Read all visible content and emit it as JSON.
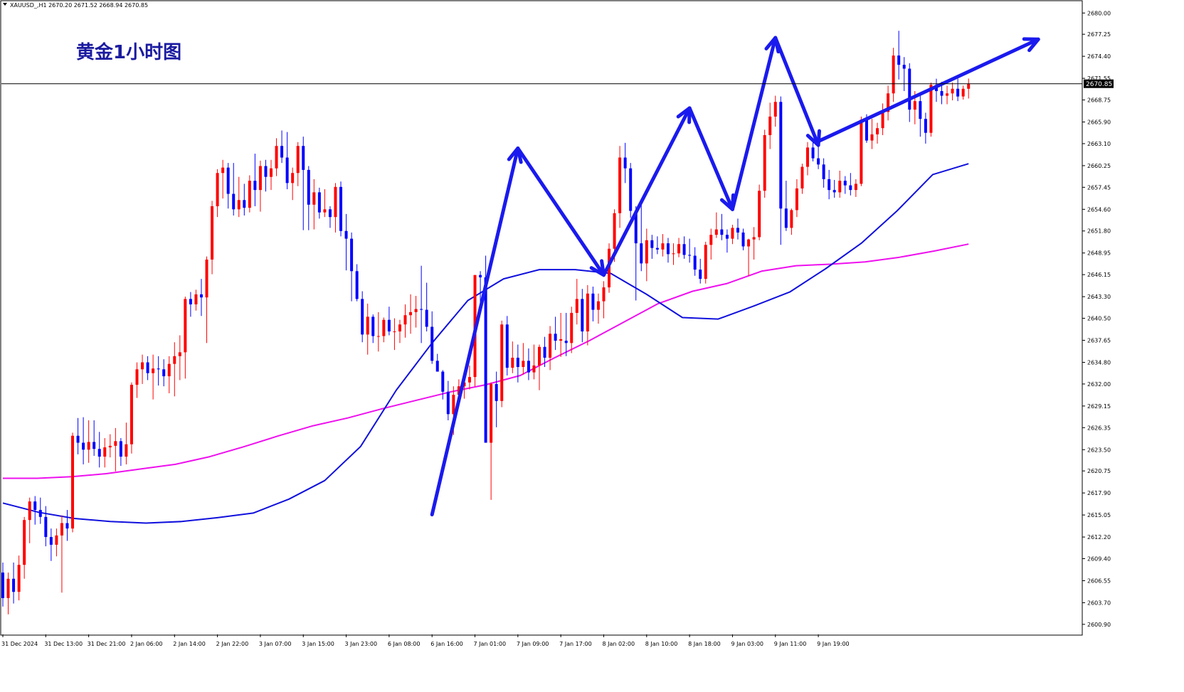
{
  "header": {
    "symbol_line": "XAUUSD_,H1  2670.20 2671.52 2668.94 2670.85"
  },
  "chart_data": {
    "type": "candlestick",
    "title": "黄金1小时图",
    "symbol": "XAUUSD_",
    "timeframe": "H1",
    "current_price_label": "2670.85",
    "current_price": 2670.85,
    "ylim": [
      2599.6,
      2681.5
    ],
    "y_ticks": [
      "2680.00",
      "2677.25",
      "2674.40",
      "2671.55",
      "2668.75",
      "2665.90",
      "2663.10",
      "2660.25",
      "2657.45",
      "2654.60",
      "2651.80",
      "2648.95",
      "2646.15",
      "2643.30",
      "2640.50",
      "2637.65",
      "2634.80",
      "2632.00",
      "2629.15",
      "2626.35",
      "2623.50",
      "2620.75",
      "2617.90",
      "2615.05",
      "2612.20",
      "2609.40",
      "2606.55",
      "2603.70",
      "2600.90"
    ],
    "x_labels": [
      "31 Dec 2024",
      "31 Dec 13:00",
      "31 Dec 21:00",
      "2 Jan 06:00",
      "2 Jan 14:00",
      "2 Jan 22:00",
      "3 Jan 07:00",
      "3 Jan 15:00",
      "3 Jan 23:00",
      "6 Jan 08:00",
      "6 Jan 16:00",
      "7 Jan 01:00",
      "7 Jan 09:00",
      "7 Jan 17:00",
      "8 Jan 02:00",
      "8 Jan 10:00",
      "8 Jan 18:00",
      "9 Jan 03:00",
      "9 Jan 11:00",
      "9 Jan 19:00"
    ],
    "colors": {
      "bull": "#ff0000",
      "bear": "#0000ff",
      "ma_fast": "#1010dd",
      "ma_slow": "#ee10ee",
      "arrow": "#1a1aee",
      "grid": "none"
    },
    "candles": [
      [
        2607.6,
        2608.9,
        2603.2,
        2604.3
      ],
      [
        2604.3,
        2607.6,
        2602.2,
        2606.8
      ],
      [
        2606.8,
        2608.9,
        2603.6,
        2605.1
      ],
      [
        2605.1,
        2609.8,
        2604.0,
        2608.6
      ],
      [
        2608.6,
        2614.8,
        2606.8,
        2614.4
      ],
      [
        2614.4,
        2617.3,
        2611.4,
        2616.8
      ],
      [
        2616.8,
        2617.5,
        2613.8,
        2615.7
      ],
      [
        2615.7,
        2617.3,
        2613.9,
        2614.8
      ],
      [
        2614.8,
        2616.2,
        2611.0,
        2612.2
      ],
      [
        2612.2,
        2613.3,
        2609.1,
        2611.2
      ],
      [
        2611.2,
        2613.3,
        2609.7,
        2612.4
      ],
      [
        2612.4,
        2615.0,
        2605.0,
        2614.0
      ],
      [
        2614.0,
        2615.7,
        2611.7,
        2613.3
      ],
      [
        2613.3,
        2625.7,
        2612.8,
        2625.3
      ],
      [
        2625.3,
        2627.6,
        2622.9,
        2624.4
      ],
      [
        2624.4,
        2627.7,
        2621.6,
        2623.5
      ],
      [
        2623.5,
        2627.3,
        2621.8,
        2624.5
      ],
      [
        2624.5,
        2627.3,
        2622.7,
        2623.6
      ],
      [
        2623.6,
        2625.8,
        2621.2,
        2622.6
      ],
      [
        2622.6,
        2625.0,
        2621.2,
        2623.8
      ],
      [
        2623.8,
        2625.5,
        2622.5,
        2624.0
      ],
      [
        2624.0,
        2626.3,
        2620.7,
        2624.6
      ],
      [
        2624.6,
        2625.0,
        2621.4,
        2622.6
      ],
      [
        2622.6,
        2627.0,
        2621.6,
        2624.2
      ],
      [
        2624.2,
        2632.2,
        2623.0,
        2631.9
      ],
      [
        2631.9,
        2634.8,
        2630.2,
        2633.9
      ],
      [
        2633.9,
        2635.8,
        2632.0,
        2634.8
      ],
      [
        2634.8,
        2635.6,
        2632.5,
        2633.4
      ],
      [
        2633.4,
        2635.8,
        2630.0,
        2634.0
      ],
      [
        2634.0,
        2635.6,
        2631.8,
        2633.9
      ],
      [
        2633.9,
        2635.2,
        2631.7,
        2633.0
      ],
      [
        2633.0,
        2635.6,
        2630.8,
        2634.6
      ],
      [
        2634.6,
        2637.4,
        2630.4,
        2635.6
      ],
      [
        2635.6,
        2638.3,
        2632.5,
        2636.1
      ],
      [
        2636.1,
        2643.3,
        2632.7,
        2643.0
      ],
      [
        2643.0,
        2643.9,
        2640.7,
        2642.3
      ],
      [
        2642.3,
        2644.2,
        2641.5,
        2643.6
      ],
      [
        2643.6,
        2645.6,
        2640.8,
        2643.2
      ],
      [
        2643.2,
        2648.5,
        2637.3,
        2648.1
      ],
      [
        2648.1,
        2655.7,
        2646.2,
        2655.0
      ],
      [
        2655.0,
        2659.8,
        2653.6,
        2659.3
      ],
      [
        2659.3,
        2661.0,
        2656.0,
        2660.0
      ],
      [
        2660.0,
        2660.6,
        2654.7,
        2656.6
      ],
      [
        2656.6,
        2660.6,
        2653.8,
        2654.6
      ],
      [
        2654.6,
        2658.8,
        2653.6,
        2655.8
      ],
      [
        2655.8,
        2657.9,
        2653.8,
        2654.8
      ],
      [
        2654.8,
        2659.0,
        2654.2,
        2658.3
      ],
      [
        2658.3,
        2661.8,
        2655.0,
        2657.1
      ],
      [
        2657.1,
        2660.9,
        2654.3,
        2660.2
      ],
      [
        2660.2,
        2661.0,
        2656.9,
        2658.8
      ],
      [
        2658.8,
        2661.0,
        2657.1,
        2659.9
      ],
      [
        2659.9,
        2663.8,
        2658.9,
        2662.8
      ],
      [
        2662.8,
        2664.8,
        2660.6,
        2661.3
      ],
      [
        2661.3,
        2664.6,
        2657.2,
        2658.0
      ],
      [
        2658.0,
        2660.0,
        2655.8,
        2659.3
      ],
      [
        2659.3,
        2663.3,
        2657.6,
        2662.8
      ],
      [
        2662.8,
        2664.0,
        2651.9,
        2659.7
      ],
      [
        2659.7,
        2660.2,
        2651.9,
        2655.2
      ],
      [
        2655.2,
        2658.5,
        2652.0,
        2656.8
      ],
      [
        2656.8,
        2657.4,
        2653.4,
        2654.2
      ],
      [
        2654.2,
        2657.2,
        2653.6,
        2654.6
      ],
      [
        2654.6,
        2655.0,
        2652.2,
        2653.6
      ],
      [
        2653.6,
        2658.0,
        2651.6,
        2657.5
      ],
      [
        2657.5,
        2658.2,
        2651.1,
        2651.8
      ],
      [
        2651.8,
        2654.0,
        2646.7,
        2650.8
      ],
      [
        2650.8,
        2651.6,
        2642.7,
        2646.6
      ],
      [
        2646.6,
        2647.5,
        2642.7,
        2643.0
      ],
      [
        2643.0,
        2644.0,
        2637.4,
        2638.4
      ],
      [
        2638.4,
        2642.4,
        2635.8,
        2640.7
      ],
      [
        2640.7,
        2641.0,
        2637.3,
        2638.2
      ],
      [
        2638.2,
        2641.3,
        2636.2,
        2638.2
      ],
      [
        2638.2,
        2640.6,
        2637.4,
        2640.3
      ],
      [
        2640.3,
        2642.0,
        2638.3,
        2638.8
      ],
      [
        2638.8,
        2640.5,
        2636.4,
        2638.8
      ],
      [
        2638.8,
        2640.3,
        2637.3,
        2639.7
      ],
      [
        2639.7,
        2642.3,
        2638.0,
        2640.9
      ],
      [
        2640.9,
        2643.6,
        2638.5,
        2641.3
      ],
      [
        2641.3,
        2643.4,
        2639.3,
        2641.7
      ],
      [
        2641.7,
        2647.3,
        2637.3,
        2641.6
      ],
      [
        2641.6,
        2645.1,
        2638.8,
        2639.4
      ],
      [
        2639.4,
        2641.4,
        2634.6,
        2635.0
      ],
      [
        2635.0,
        2635.9,
        2633.8,
        2633.6
      ],
      [
        2633.6,
        2633.8,
        2630.0,
        2631.0
      ],
      [
        2631.0,
        2632.4,
        2627.3,
        2628.1
      ],
      [
        2628.1,
        2631.7,
        2625.4,
        2630.6
      ],
      [
        2630.6,
        2632.6,
        2629.7,
        2631.7
      ],
      [
        2631.7,
        2633.7,
        2630.1,
        2632.2
      ],
      [
        2632.2,
        2634.4,
        2631.3,
        2632.9
      ],
      [
        2632.9,
        2646.1,
        2631.7,
        2646.1
      ],
      [
        2646.1,
        2646.6,
        2641.5,
        2645.8
      ],
      [
        2645.8,
        2648.6,
        2624.4,
        2624.4
      ],
      [
        2624.4,
        2632.2,
        2617.0,
        2632.0
      ],
      [
        2632.0,
        2633.6,
        2626.4,
        2629.8
      ],
      [
        2629.8,
        2640.2,
        2629.0,
        2639.7
      ],
      [
        2639.7,
        2640.8,
        2633.1,
        2634.1
      ],
      [
        2634.1,
        2637.5,
        2633.4,
        2635.4
      ],
      [
        2635.4,
        2637.1,
        2632.2,
        2634.2
      ],
      [
        2634.2,
        2637.3,
        2633.2,
        2635.0
      ],
      [
        2635.0,
        2636.6,
        2632.5,
        2633.5
      ],
      [
        2633.5,
        2637.1,
        2632.6,
        2634.4
      ],
      [
        2634.4,
        2637.1,
        2631.2,
        2636.8
      ],
      [
        2636.8,
        2638.1,
        2634.2,
        2635.4
      ],
      [
        2635.4,
        2639.5,
        2633.8,
        2638.5
      ],
      [
        2638.5,
        2640.7,
        2636.4,
        2637.6
      ],
      [
        2637.6,
        2641.2,
        2635.5,
        2637.8
      ],
      [
        2637.6,
        2641.2,
        2635.6,
        2637.3
      ],
      [
        2637.3,
        2642.0,
        2636.0,
        2641.2
      ],
      [
        2641.2,
        2645.6,
        2639.7,
        2643.0
      ],
      [
        2643.0,
        2644.3,
        2637.4,
        2638.8
      ],
      [
        2638.8,
        2644.8,
        2637.0,
        2643.7
      ],
      [
        2643.7,
        2644.6,
        2640.1,
        2641.6
      ],
      [
        2641.6,
        2643.7,
        2639.8,
        2642.7
      ],
      [
        2642.7,
        2645.3,
        2640.5,
        2644.5
      ],
      [
        2644.5,
        2650.2,
        2643.8,
        2649.5
      ],
      [
        2649.5,
        2654.6,
        2647.8,
        2654.1
      ],
      [
        2654.1,
        2662.8,
        2652.2,
        2661.3
      ],
      [
        2661.3,
        2663.2,
        2658.0,
        2659.9
      ],
      [
        2659.9,
        2660.6,
        2653.5,
        2654.4
      ],
      [
        2654.4,
        2655.0,
        2642.8,
        2650.2
      ],
      [
        2650.2,
        2655.5,
        2646.6,
        2647.6
      ],
      [
        2647.6,
        2652.1,
        2645.3,
        2650.6
      ],
      [
        2650.6,
        2651.3,
        2648.2,
        2649.6
      ],
      [
        2649.6,
        2651.1,
        2648.8,
        2649.4
      ],
      [
        2649.4,
        2651.4,
        2648.5,
        2650.2
      ],
      [
        2650.2,
        2650.9,
        2647.7,
        2648.8
      ],
      [
        2648.8,
        2650.2,
        2647.4,
        2648.9
      ],
      [
        2648.9,
        2650.9,
        2648.4,
        2650.1
      ],
      [
        2650.1,
        2651.1,
        2648.2,
        2648.7
      ],
      [
        2648.7,
        2650.8,
        2647.7,
        2648.6
      ],
      [
        2648.6,
        2649.7,
        2646.0,
        2646.8
      ],
      [
        2646.8,
        2648.2,
        2645.0,
        2645.6
      ],
      [
        2645.6,
        2650.4,
        2645.0,
        2650.0
      ],
      [
        2650.0,
        2652.1,
        2648.1,
        2651.3
      ],
      [
        2651.3,
        2654.2,
        2650.9,
        2652.0
      ],
      [
        2652.0,
        2654.0,
        2650.6,
        2651.3
      ],
      [
        2651.3,
        2652.0,
        2649.0,
        2650.8
      ],
      [
        2650.8,
        2652.6,
        2650.1,
        2652.2
      ],
      [
        2652.2,
        2653.4,
        2650.7,
        2651.6
      ],
      [
        2651.6,
        2652.1,
        2649.3,
        2649.8
      ],
      [
        2649.8,
        2650.8,
        2646.0,
        2650.7
      ],
      [
        2650.7,
        2652.3,
        2648.1,
        2651.0
      ],
      [
        2651.0,
        2657.8,
        2650.6,
        2657.0
      ],
      [
        2657.0,
        2664.9,
        2656.1,
        2664.2
      ],
      [
        2664.2,
        2668.4,
        2662.4,
        2666.6
      ],
      [
        2666.6,
        2669.3,
        2665.3,
        2668.5
      ],
      [
        2668.5,
        2669.2,
        2650.0,
        2654.7
      ],
      [
        2654.7,
        2658.3,
        2651.8,
        2652.2
      ],
      [
        2652.2,
        2654.7,
        2651.3,
        2654.5
      ],
      [
        2654.5,
        2658.5,
        2653.6,
        2657.3
      ],
      [
        2657.3,
        2660.5,
        2656.6,
        2660.1
      ],
      [
        2660.1,
        2663.3,
        2659.0,
        2662.6
      ],
      [
        2662.6,
        2663.5,
        2660.8,
        2661.2
      ],
      [
        2661.2,
        2662.9,
        2659.8,
        2660.4
      ],
      [
        2660.4,
        2661.2,
        2657.4,
        2658.5
      ],
      [
        2658.5,
        2659.7,
        2655.9,
        2657.1
      ],
      [
        2657.1,
        2658.4,
        2656.1,
        2656.8
      ],
      [
        2656.8,
        2659.6,
        2656.1,
        2658.3
      ],
      [
        2658.3,
        2658.9,
        2656.6,
        2657.7
      ],
      [
        2657.7,
        2659.3,
        2656.4,
        2657.1
      ],
      [
        2657.1,
        2658.5,
        2656.2,
        2657.9
      ],
      [
        2657.9,
        2666.6,
        2657.6,
        2666.2
      ],
      [
        2666.2,
        2666.9,
        2663.2,
        2663.5
      ],
      [
        2663.5,
        2666.3,
        2662.4,
        2664.3
      ],
      [
        2664.3,
        2665.8,
        2663.1,
        2665.1
      ],
      [
        2665.1,
        2668.3,
        2664.2,
        2667.2
      ],
      [
        2667.2,
        2670.6,
        2666.1,
        2669.6
      ],
      [
        2669.6,
        2675.5,
        2668.5,
        2674.5
      ],
      [
        2674.5,
        2677.7,
        2671.4,
        2673.3
      ],
      [
        2673.3,
        2674.3,
        2669.9,
        2672.8
      ],
      [
        2672.8,
        2673.5,
        2665.9,
        2667.5
      ],
      [
        2667.5,
        2669.9,
        2665.6,
        2668.6
      ],
      [
        2668.6,
        2669.7,
        2664.0,
        2666.3
      ],
      [
        2666.3,
        2667.1,
        2663.1,
        2664.5
      ],
      [
        2664.5,
        2671.0,
        2664.0,
        2670.7
      ],
      [
        2670.7,
        2671.5,
        2668.5,
        2669.9
      ],
      [
        2669.9,
        2671.1,
        2668.2,
        2669.3
      ],
      [
        2669.3,
        2670.6,
        2668.2,
        2669.6
      ],
      [
        2669.6,
        2671.0,
        2668.7,
        2670.2
      ],
      [
        2670.2,
        2671.5,
        2668.6,
        2669.2
      ],
      [
        2669.2,
        2670.6,
        2668.8,
        2670.2
      ],
      [
        2670.2,
        2671.52,
        2668.94,
        2670.85
      ]
    ],
    "ma_fast": [
      2616.6,
      2615.4,
      2614.6,
      2614.2,
      2614.0,
      2614.2,
      2614.7,
      2615.3,
      2617.1,
      2619.5,
      2623.9,
      2631.2,
      2637.3,
      2642.8,
      2645.6,
      2646.8,
      2646.8,
      2646.3,
      2643.6,
      2640.6,
      2640.4,
      2642.1,
      2643.9,
      2646.9,
      2650.2,
      2654.4,
      2659.1,
      2660.5
    ],
    "ma_slow": [
      2619.8,
      2619.8,
      2620.0,
      2620.4,
      2621.0,
      2621.6,
      2622.6,
      2623.9,
      2625.3,
      2626.6,
      2627.6,
      2628.8,
      2629.9,
      2631.0,
      2631.9,
      2633.1,
      2635.4,
      2637.6,
      2640.0,
      2642.4,
      2644.0,
      2645.0,
      2646.6,
      2647.3,
      2647.5,
      2647.8,
      2648.4,
      2649.2,
      2650.1
    ],
    "arrows": [
      {
        "from": [
          "6 Jan 16:00",
          2615.1
        ],
        "to": [
          "7 Jan 09:00",
          2662.5
        ]
      },
      {
        "from": [
          "7 Jan 09:00",
          2662.5
        ],
        "to": [
          "8 Jan 02:00",
          2646.1
        ]
      },
      {
        "from": [
          "8 Jan 02:00",
          2646.1
        ],
        "to": [
          "8 Jan 18:00",
          2667.7
        ]
      },
      {
        "from": [
          "8 Jan 18:00",
          2667.7
        ],
        "to": [
          "9 Jan 03:00",
          2654.6
        ]
      },
      {
        "from": [
          "9 Jan 03:00",
          2654.6
        ],
        "to": [
          "9 Jan 11:00",
          2676.8
        ]
      },
      {
        "from": [
          "9 Jan 11:00",
          2676.8
        ],
        "to": [
          "9 Jan 19:00",
          2662.9
        ]
      },
      {
        "from": [
          "9 Jan 19:00",
          2663.4
        ],
        "to": [
          "after 9 Jan 19:00",
          2676.6
        ]
      }
    ]
  }
}
